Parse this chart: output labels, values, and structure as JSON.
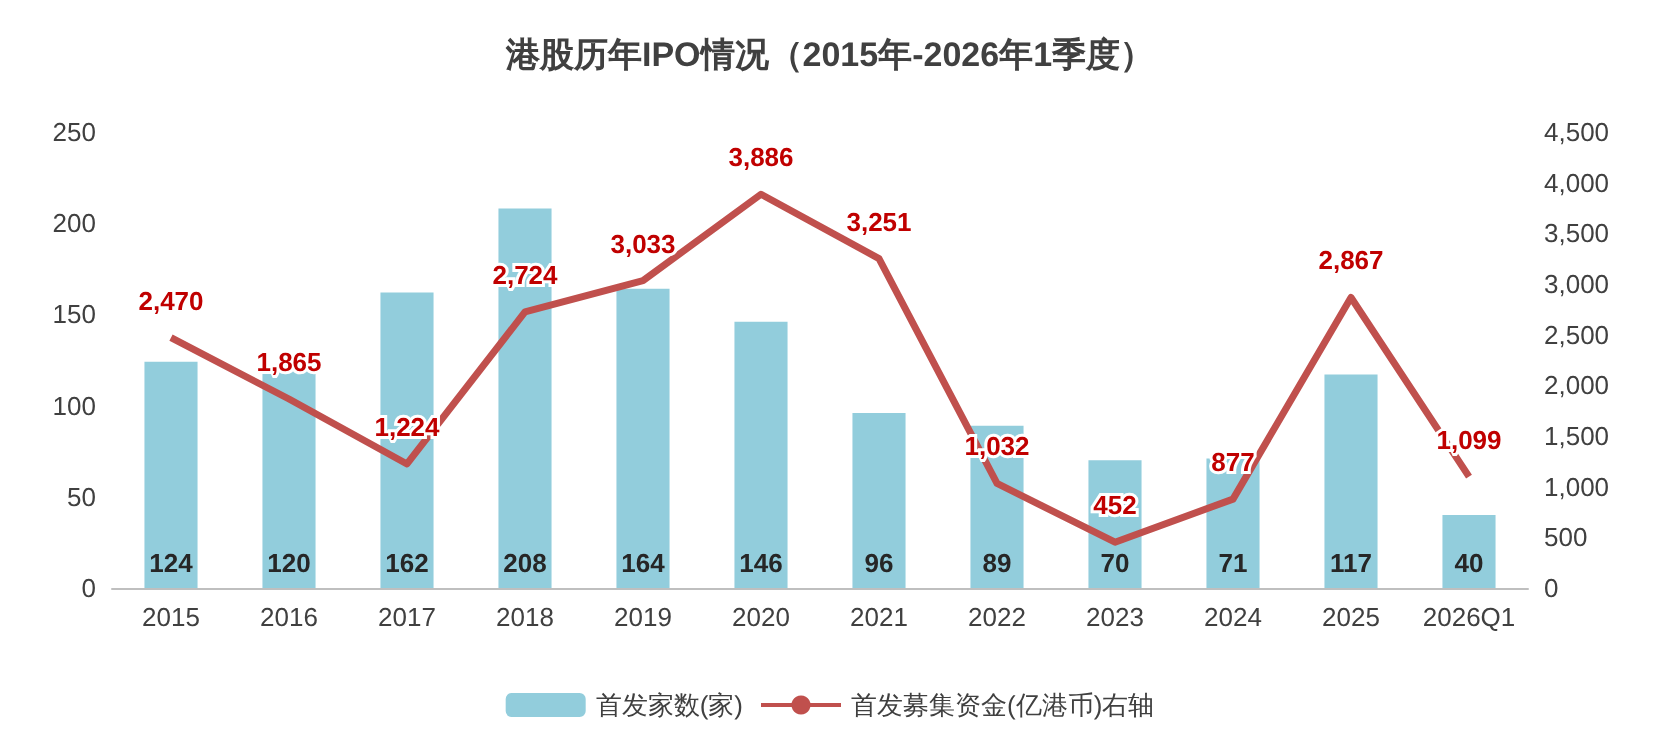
{
  "chart_data": {
    "type": "bar",
    "title": "港股历年IPO情况（2015年-2026年1季度）",
    "categories": [
      "2015",
      "2016",
      "2017",
      "2018",
      "2019",
      "2020",
      "2021",
      "2022",
      "2023",
      "2024",
      "2025",
      "2026Q1"
    ],
    "series": [
      {
        "name": "首发家数(家)",
        "color": "#92cddc",
        "values": [
          124,
          120,
          162,
          208,
          164,
          146,
          96,
          89,
          70,
          71,
          117,
          40
        ],
        "value_labels": [
          "124",
          "120",
          "162",
          "208",
          "164",
          "146",
          "96",
          "89",
          "70",
          "71",
          "117",
          "40"
        ]
      },
      {
        "name": "首发募集资金(亿港币)右轴",
        "type": "line",
        "axis": "y2",
        "color": "#c0504d",
        "values": [
          2470,
          1865,
          1224,
          2724,
          3033,
          3886,
          3251,
          1032,
          452,
          877,
          2867,
          1099
        ],
        "value_labels": [
          "2,470",
          "1,865",
          "1,224",
          "2,724",
          "3,033",
          "3,886",
          "3,251",
          "1,032",
          "452",
          "877",
          "2,867",
          "1,099"
        ]
      }
    ],
    "ylim": [
      0,
      250
    ],
    "yticks": [
      0,
      50,
      100,
      150,
      200,
      250
    ],
    "y2lim": [
      0,
      4500
    ],
    "y2ticks": [
      0,
      {
        "value": 500,
        "label": "500"
      },
      {
        "value": 1000,
        "label": "1,000"
      },
      {
        "value": 1500,
        "label": "1,500"
      },
      {
        "value": 2000,
        "label": "2,000"
      },
      {
        "value": 2500,
        "label": "2,500"
      },
      {
        "value": 3000,
        "label": "3,000"
      },
      {
        "value": 3500,
        "label": "3,500"
      },
      {
        "value": 4000,
        "label": "4,000"
      },
      {
        "value": 4500,
        "label": "4,500"
      }
    ],
    "grid": false,
    "legend": "bottom",
    "marker": "none",
    "line_style": "solid"
  }
}
